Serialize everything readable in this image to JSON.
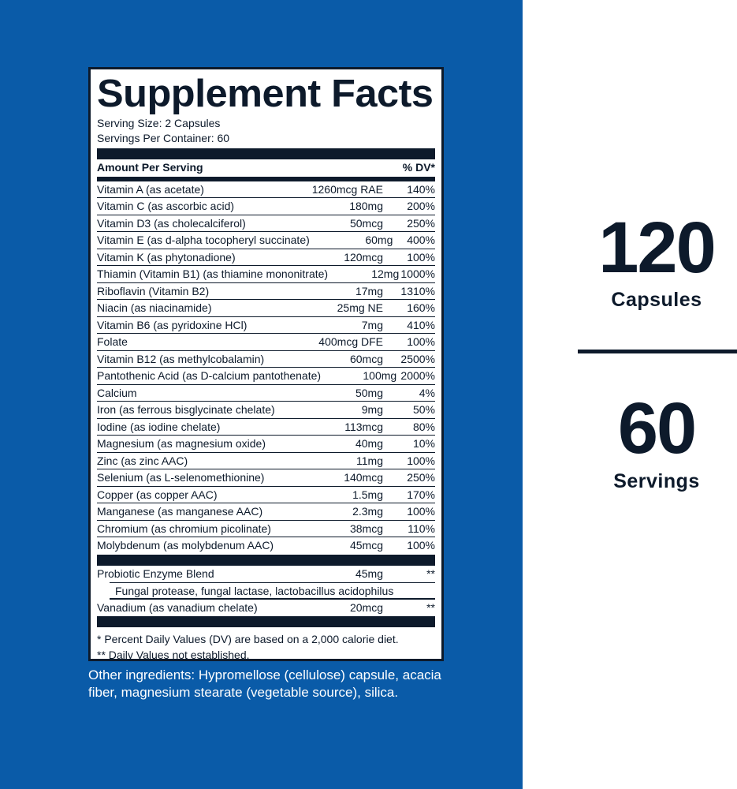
{
  "label": {
    "title": "Supplement Facts",
    "serving_size": "Serving Size: 2 Capsules",
    "servings_per_container": "Servings Per Container: 60",
    "header_amount": "Amount Per Serving",
    "header_dv": "% DV*",
    "rows": [
      [
        "Vitamin A (as acetate)",
        "1260mcg RAE",
        "140%"
      ],
      [
        "Vitamin C (as ascorbic acid)",
        "180mg",
        "200%"
      ],
      [
        "Vitamin D3 (as cholecalciferol)",
        "50mcg",
        "250%"
      ],
      [
        "Vitamin E (as d-alpha tocopheryl succinate)",
        "60mg",
        "400%"
      ],
      [
        "Vitamin K (as phytonadione)",
        "120mcg",
        "100%"
      ],
      [
        "Thiamin (Vitamin B1) (as thiamine mononitrate)",
        "12mg",
        "1000%"
      ],
      [
        "Riboflavin (Vitamin B2)",
        "17mg",
        "1310%"
      ],
      [
        "Niacin (as niacinamide)",
        "25mg NE",
        "160%"
      ],
      [
        "Vitamin B6 (as pyridoxine HCl)",
        "7mg",
        "410%"
      ],
      [
        "Folate",
        "400mcg DFE",
        "100%"
      ],
      [
        "Vitamin B12 (as methylcobalamin)",
        "60mcg",
        "2500%"
      ],
      [
        "Pantothenic Acid (as D-calcium pantothenate)",
        "100mg",
        "2000%"
      ],
      [
        "Calcium",
        "50mg",
        "4%"
      ],
      [
        "Iron (as ferrous bisglycinate chelate)",
        "9mg",
        "50%"
      ],
      [
        "Iodine (as iodine chelate)",
        "113mcg",
        "80%"
      ],
      [
        "Magnesium (as magnesium oxide)",
        "40mg",
        "10%"
      ],
      [
        "Zinc (as zinc AAC)",
        "11mg",
        "100%"
      ],
      [
        "Selenium (as L-selenomethionine)",
        "140mcg",
        "250%"
      ],
      [
        "Copper (as copper AAC)",
        "1.5mg",
        "170%"
      ],
      [
        "Manganese (as manganese AAC)",
        "2.3mg",
        "100%"
      ],
      [
        "Chromium (as chromium picolinate)",
        "38mcg",
        "110%"
      ],
      [
        "Molybdenum (as molybdenum AAC)",
        "45mcg",
        "100%"
      ]
    ],
    "blend": {
      "name": "Probiotic Enzyme Blend",
      "amount": "45mg",
      "dv": "**",
      "contents": "Fungal protease, fungal lactase, lactobacillus acidophilus"
    },
    "vanadium": {
      "name": "Vanadium (as vanadium chelate)",
      "amount": "20mcg",
      "dv": "**"
    },
    "footnote1": "* Percent Daily Values (DV) are based on a 2,000 calorie diet.",
    "footnote2": "** Daily Values not established."
  },
  "other_ingredients": "Other ingredients: Hypromellose (cellulose) capsule, acacia fiber, magnesium stearate (vegetable source), silica.",
  "count": {
    "capsules_number": "120",
    "capsules_label": "Capsules",
    "servings_number": "60",
    "servings_label": "Servings"
  },
  "colors": {
    "blue": "#0a5ba8",
    "navy": "#0d1a2b"
  }
}
